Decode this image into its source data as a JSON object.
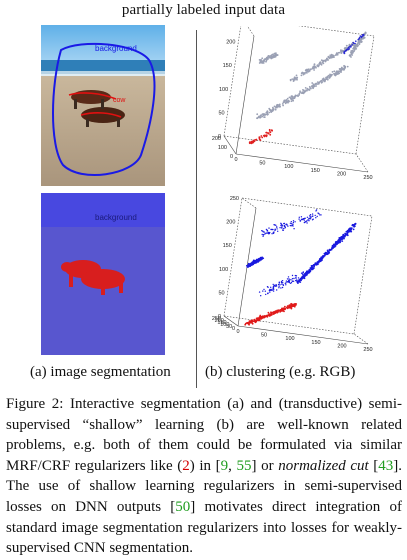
{
  "figure_title": "partially labeled input data",
  "top_image": {
    "label_background": "background",
    "label_cow": "cow",
    "scribble_colors": {
      "background": "#1a1ae6",
      "cow": "#e01010"
    }
  },
  "bottom_image": {
    "label_background": "background",
    "segment_colors": {
      "background": "#4a4ad8",
      "cow": "#d81e1e"
    }
  },
  "scatter_top": {
    "z_ticks": [
      "250",
      "200",
      "150",
      "100",
      "50",
      "0"
    ],
    "left_ticks": [
      "200",
      "100",
      "0"
    ],
    "x_ticks": [
      "0",
      "50",
      "100",
      "150",
      "200",
      "250"
    ],
    "colors": {
      "unlabeled": "#9aa0b4",
      "background": "#2b2bd0",
      "cow": "#e02020"
    }
  },
  "scatter_bottom": {
    "z_ticks": [
      "250",
      "200",
      "150",
      "100",
      "50",
      "0"
    ],
    "left_ticks": [
      "250",
      "200",
      "150",
      "100",
      "50",
      "0"
    ],
    "x_ticks": [
      "0",
      "50",
      "100",
      "150",
      "200",
      "250"
    ],
    "colors": {
      "background": "#1a1adf",
      "cow": "#e01a1a"
    }
  },
  "subcaption_a": "(a) image segmentation",
  "subcaption_b": "(b) clustering (e.g. RGB)",
  "caption": {
    "p1": "Figure 2: Interactive segmentation (a) and (transductive) semi-supervised “shallow” learning (b) are well-known related problems, e.g. both of them could be formulated via similar MRF/CRF regularizers like (",
    "r1": "2",
    "p2": ") in [",
    "r2": "9",
    "p3": ", ",
    "r3": "55",
    "p4": "] or ",
    "i1": "normalized cut",
    "p5": " [",
    "r4": "43",
    "p6": "]. The use of shallow learning regularizers in semi-supervised losses on DNN outputs [",
    "r5": "50",
    "p7": "] motivates direct integration of standard image segmentation regularizers into losses for weakly-supervised CNN segmentation."
  }
}
